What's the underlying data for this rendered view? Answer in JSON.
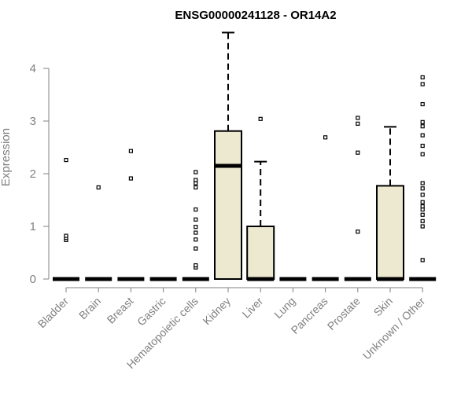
{
  "chart_data": {
    "type": "box",
    "title": "ENSG00000241128 - OR14A2",
    "ylabel": "Expression",
    "xlabel": "",
    "ylim": [
      0,
      4.7
    ],
    "yticks": [
      0,
      1,
      2,
      3,
      4
    ],
    "grid": false,
    "box_fill": "#ede8d0",
    "categories": [
      "Bladder",
      "Brain",
      "Breast",
      "Gastric",
      "Hematopoietic cells",
      "Kidney",
      "Liver",
      "Lung",
      "Pancreas",
      "Prostate",
      "Skin",
      "Unknown / Other"
    ],
    "boxes": [
      {
        "q1": 0,
        "median": 0,
        "q3": 0,
        "whisker_low": 0,
        "whisker_high": 0,
        "outliers": [
          0.74,
          0.78,
          0.82,
          2.26
        ]
      },
      {
        "q1": 0,
        "median": 0,
        "q3": 0,
        "whisker_low": 0,
        "whisker_high": 0,
        "outliers": [
          1.74
        ]
      },
      {
        "q1": 0,
        "median": 0,
        "q3": 0,
        "whisker_low": 0,
        "whisker_high": 0,
        "outliers": [
          1.91,
          2.43
        ]
      },
      {
        "q1": 0,
        "median": 0,
        "q3": 0,
        "whisker_low": 0,
        "whisker_high": 0,
        "outliers": []
      },
      {
        "q1": 0,
        "median": 0,
        "q3": 0,
        "whisker_low": 0,
        "whisker_high": 0,
        "outliers": [
          0.22,
          0.26,
          0.58,
          0.75,
          0.88,
          0.99,
          1.13,
          1.32,
          1.74,
          1.82,
          1.88,
          2.03
        ]
      },
      {
        "q1": 0,
        "median": 2.15,
        "q3": 2.81,
        "whisker_low": 0,
        "whisker_high": 4.68,
        "outliers": []
      },
      {
        "q1": 0,
        "median": 0,
        "q3": 1.0,
        "whisker_low": 0,
        "whisker_high": 2.23,
        "outliers": [
          3.04
        ]
      },
      {
        "q1": 0,
        "median": 0,
        "q3": 0,
        "whisker_low": 0,
        "whisker_high": 0,
        "outliers": []
      },
      {
        "q1": 0,
        "median": 0,
        "q3": 0,
        "whisker_low": 0,
        "whisker_high": 0,
        "outliers": [
          2.69
        ]
      },
      {
        "q1": 0,
        "median": 0,
        "q3": 0,
        "whisker_low": 0,
        "whisker_high": 0,
        "outliers": [
          0.9,
          2.4,
          2.95,
          3.06
        ]
      },
      {
        "q1": 0,
        "median": 0,
        "q3": 1.77,
        "whisker_low": 0,
        "whisker_high": 2.89,
        "outliers": []
      },
      {
        "q1": 0,
        "median": 0,
        "q3": 0,
        "whisker_low": 0,
        "whisker_high": 0,
        "outliers": [
          0.36,
          1.0,
          1.1,
          1.22,
          1.32,
          1.38,
          1.46,
          1.6,
          1.72,
          1.82,
          2.37,
          2.53,
          2.73,
          2.9,
          2.98,
          3.32,
          3.7,
          3.83
        ]
      }
    ]
  }
}
